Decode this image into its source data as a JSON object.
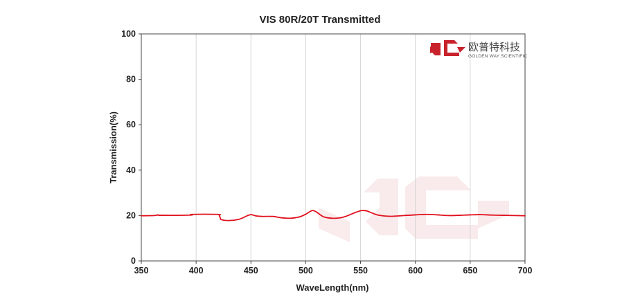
{
  "chart_data": {
    "type": "line",
    "title": "VIS 80R/20T Transmitted",
    "xlabel": "WaveLength(nm)",
    "ylabel": "Transmission(%)",
    "xlim": [
      350,
      700
    ],
    "ylim": [
      0,
      100
    ],
    "xticks": [
      350,
      400,
      450,
      500,
      550,
      600,
      650,
      700
    ],
    "yticks": [
      0,
      20,
      40,
      60,
      80,
      100
    ],
    "grid": "vertical",
    "series": [
      {
        "color": "#e0101d",
        "x": [
          350,
          362,
          365,
          368,
          395,
          396,
          420,
          421,
          422,
          423,
          430,
          438,
          444,
          447,
          450,
          452,
          455,
          460,
          470,
          478,
          485,
          490,
          495,
          500,
          503,
          506,
          508,
          510,
          513,
          516,
          520,
          525,
          530,
          535,
          540,
          545,
          550,
          553,
          556,
          560,
          565,
          570,
          575,
          580,
          590,
          600,
          610,
          620,
          630,
          640,
          650,
          660,
          670,
          680,
          690,
          700
        ],
        "y": [
          19.9,
          20.0,
          20.3,
          20.1,
          20.2,
          20.5,
          20.5,
          20.2,
          19.0,
          18.2,
          17.8,
          18.2,
          19.3,
          20.0,
          20.4,
          20.2,
          19.8,
          19.6,
          19.6,
          19.0,
          18.8,
          19.0,
          19.5,
          20.6,
          21.5,
          22.2,
          22.0,
          21.5,
          20.4,
          19.5,
          19.0,
          18.8,
          18.9,
          19.4,
          20.3,
          21.3,
          22.1,
          22.2,
          22.0,
          21.2,
          20.3,
          19.9,
          19.7,
          19.7,
          20.0,
          20.3,
          20.5,
          20.3,
          20.0,
          20.1,
          20.3,
          20.4,
          20.2,
          20.1,
          20.0,
          19.9
        ]
      }
    ]
  },
  "logo": {
    "name_cn": "欧普特科技",
    "name_en": "GOLDEN WAY SCIENTIFIC",
    "color": "#c8232c"
  }
}
